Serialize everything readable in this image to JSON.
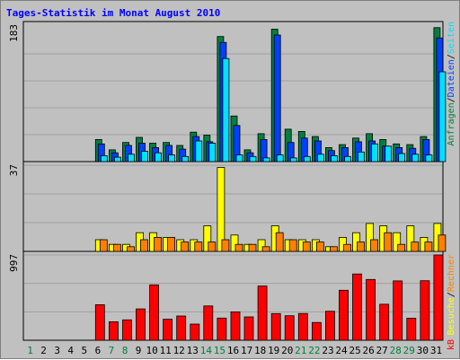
{
  "title": "Tages-Statistik im Monat August 2010",
  "chart_data": [
    {
      "type": "bar",
      "panel": "top",
      "ymax_label": "183",
      "ylim": [
        0,
        183
      ],
      "grid": true,
      "categories": [
        "1",
        "2",
        "3",
        "4",
        "5",
        "6",
        "7",
        "8",
        "9",
        "10",
        "11",
        "12",
        "13",
        "14",
        "15",
        "16",
        "17",
        "18",
        "19",
        "20",
        "21",
        "22",
        "23",
        "24",
        "25",
        "26",
        "27",
        "28",
        "29",
        "30",
        "31"
      ],
      "weekend_days": [
        "1",
        "7",
        "8",
        "14",
        "15",
        "21",
        "22",
        "28",
        "29"
      ],
      "series": [
        {
          "name": "Anfragen",
          "color": "#008040",
          "values": [
            0,
            0,
            0,
            0,
            0,
            30,
            16,
            26,
            33,
            25,
            26,
            22,
            40,
            36,
            170,
            62,
            16,
            38,
            180,
            44,
            41,
            34,
            19,
            23,
            32,
            38,
            30,
            24,
            23,
            34,
            182
          ]
        },
        {
          "name": "Dateien",
          "color": "#0040ff",
          "values": [
            0,
            0,
            0,
            0,
            0,
            24,
            12,
            22,
            25,
            19,
            22,
            17,
            34,
            27,
            162,
            49,
            12,
            30,
            172,
            26,
            32,
            28,
            15,
            19,
            27,
            28,
            21,
            19,
            18,
            30,
            168
          ]
        },
        {
          "name": "Seiten",
          "color": "#00e0ff",
          "values": [
            0,
            0,
            0,
            0,
            0,
            8,
            6,
            10,
            14,
            12,
            9,
            7,
            28,
            25,
            140,
            9,
            7,
            5,
            9,
            5,
            7,
            10,
            8,
            7,
            13,
            24,
            21,
            11,
            10,
            9,
            122
          ]
        }
      ]
    },
    {
      "type": "bar",
      "panel": "middle",
      "ymax_label": "37",
      "ylim": [
        0,
        37
      ],
      "grid": true,
      "categories": [
        "1",
        "2",
        "3",
        "4",
        "5",
        "6",
        "7",
        "8",
        "9",
        "10",
        "11",
        "12",
        "13",
        "14",
        "15",
        "16",
        "17",
        "18",
        "19",
        "20",
        "21",
        "22",
        "23",
        "24",
        "25",
        "26",
        "27",
        "28",
        "29",
        "30",
        "31"
      ],
      "weekend_days": [
        "1",
        "7",
        "8",
        "14",
        "15",
        "21",
        "22",
        "28",
        "29"
      ],
      "series": [
        {
          "name": "Besuche",
          "color": "#ffff00",
          "values": [
            0,
            0,
            0,
            0,
            0,
            5,
            3,
            3,
            8,
            8,
            6,
            5,
            5,
            11,
            36,
            7,
            3,
            5,
            11,
            5,
            5,
            5,
            2,
            6,
            8,
            12,
            11,
            8,
            11,
            6,
            12
          ]
        },
        {
          "name": "Rechner",
          "color": "#ff8000",
          "values": [
            0,
            0,
            0,
            0,
            0,
            5,
            3,
            2,
            5,
            6,
            6,
            4,
            4,
            4,
            5,
            3,
            3,
            2,
            8,
            5,
            4,
            4,
            2,
            3,
            4,
            5,
            8,
            3,
            4,
            4,
            7
          ]
        }
      ]
    },
    {
      "type": "bar",
      "panel": "bottom",
      "ymax_label": "997",
      "ylim": [
        0,
        997
      ],
      "grid": true,
      "categories": [
        "1",
        "2",
        "3",
        "4",
        "5",
        "6",
        "7",
        "8",
        "9",
        "10",
        "11",
        "12",
        "13",
        "14",
        "15",
        "16",
        "17",
        "18",
        "19",
        "20",
        "21",
        "22",
        "23",
        "24",
        "25",
        "26",
        "27",
        "28",
        "29",
        "30",
        "31"
      ],
      "weekend_days": [
        "1",
        "7",
        "8",
        "14",
        "15",
        "21",
        "22",
        "28",
        "29"
      ],
      "series": [
        {
          "name": "kB",
          "color": "#ff0000",
          "values": [
            0,
            0,
            0,
            0,
            0,
            416,
            216,
            238,
            366,
            648,
            246,
            283,
            189,
            401,
            259,
            332,
            273,
            634,
            312,
            287,
            313,
            208,
            339,
            585,
            775,
            710,
            421,
            694,
            257,
            696,
            997
          ]
        }
      ]
    }
  ],
  "right_labels": {
    "top": [
      "Anfragen",
      "/",
      "Dateien",
      "/",
      "Seiten"
    ],
    "middle": [
      "Besuche",
      "/",
      "Rechner"
    ],
    "bottom": [
      "kB"
    ]
  },
  "colors": {
    "background": "#c0c0c0",
    "weekend_day": "#008040",
    "weekday": "#000000",
    "slash": "#000000"
  }
}
